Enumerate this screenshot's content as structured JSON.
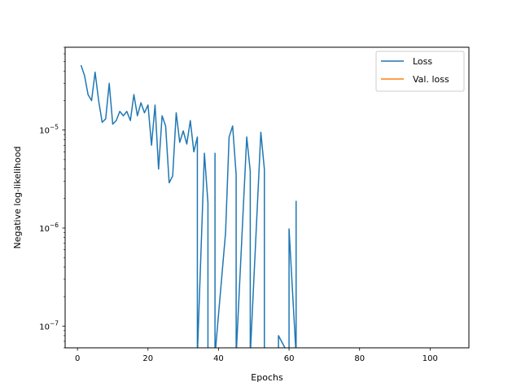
{
  "chart_data": {
    "type": "line",
    "title": "",
    "xlabel": "Epochs",
    "ylabel": "Negative log-likelihood",
    "xlim": [
      -3.5,
      111
    ],
    "ylim": [
      6e-08,
      7e-05
    ],
    "yscale": "log",
    "xticks": [
      0,
      20,
      40,
      60,
      80,
      100
    ],
    "xtick_labels": [
      "0",
      "20",
      "40",
      "60",
      "80",
      "100"
    ],
    "yticks": [
      1e-07,
      1e-06,
      1e-05
    ],
    "ytick_labels": [
      {
        "base": "10",
        "exp": "−7"
      },
      {
        "base": "10",
        "exp": "−6"
      },
      {
        "base": "10",
        "exp": "−5"
      }
    ],
    "grid": false,
    "legend": "top-right",
    "series": [
      {
        "name": "Loss",
        "color": "#1f77b4",
        "x": [
          1,
          2,
          3,
          4,
          5,
          6,
          7,
          8,
          9,
          10,
          11,
          12,
          13,
          14,
          15,
          16,
          17,
          18,
          19,
          20,
          21,
          22,
          23,
          24,
          25,
          26,
          27,
          28,
          29,
          30,
          31,
          32,
          33,
          34,
          34,
          34,
          36,
          37,
          37,
          39,
          39,
          39,
          42,
          43,
          44,
          45,
          45,
          48,
          49,
          49,
          52,
          53,
          53,
          57,
          57,
          60,
          60,
          62,
          62
        ],
        "y": [
          4.6e-05,
          3.6e-05,
          2.3e-05,
          2e-05,
          3.9e-05,
          2e-05,
          1.2e-05,
          1.3e-05,
          3e-05,
          1.15e-05,
          1.25e-05,
          1.55e-05,
          1.4e-05,
          1.55e-05,
          1.25e-05,
          2.3e-05,
          1.4e-05,
          1.9e-05,
          1.5e-05,
          1.8e-05,
          7e-06,
          1.8e-05,
          4e-06,
          1.4e-05,
          1.1e-05,
          2.9e-06,
          3.4e-06,
          1.5e-05,
          7.5e-06,
          9.8e-06,
          7.2e-06,
          1.25e-05,
          6e-06,
          8.5e-06,
          5e-08,
          5e-08,
          5.8e-06,
          1.8e-06,
          5e-08,
          5e-08,
          5.8e-06,
          5e-08,
          9e-07,
          8.5e-06,
          1.1e-05,
          3.5e-06,
          5e-08,
          8.5e-06,
          3.8e-06,
          5e-08,
          9.5e-06,
          4e-06,
          5e-08,
          5e-08,
          8e-08,
          5e-08,
          9.8e-07,
          5e-08,
          1.9e-06
        ]
      },
      {
        "name": "Val. loss",
        "color": "#ff7f0e",
        "x": [],
        "y": []
      }
    ]
  }
}
